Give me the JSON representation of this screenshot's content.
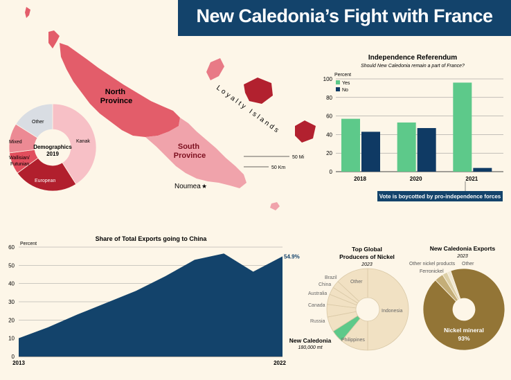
{
  "banner": {
    "title": "New Caledonia’s Fight with France"
  },
  "map": {
    "north_province": [
      "North",
      "Province"
    ],
    "south_province": [
      "South",
      "Province"
    ],
    "loyalty_islands": "Loyalty Islands",
    "capital": "Noumea",
    "scale_mi": "50 Mi",
    "scale_km": "50 Km",
    "colors": {
      "north": "#e35d6a",
      "south": "#f0a3ab",
      "loyalty": "#b2212f",
      "other": "#e87a86"
    }
  },
  "chart_data": [
    {
      "id": "demographics",
      "type": "pie",
      "title": "Demographics",
      "subtitle": "2019",
      "categories": [
        "Kanak",
        "European",
        "Wallisian/ Futunian",
        "Mixed",
        "Other"
      ],
      "values": [
        41,
        24,
        8,
        11,
        16
      ],
      "colors": [
        "#f7c0c6",
        "#b11f2d",
        "#e14e5d",
        "#ec8a94",
        "#d9dde3"
      ]
    },
    {
      "id": "referendum",
      "type": "bar",
      "title": "Independence Referendum",
      "subtitle": "Should New Caledonia remain a part of France?",
      "ylabel": "Percent",
      "categories": [
        "2018",
        "2020",
        "2021"
      ],
      "series": [
        {
          "name": "Yes",
          "values": [
            57,
            53,
            96
          ],
          "color": "#5dc98a"
        },
        {
          "name": "No",
          "values": [
            43,
            47,
            4
          ],
          "color": "#0f3a64"
        }
      ],
      "ylim": [
        0,
        100
      ],
      "yticks": [
        0,
        20,
        40,
        60,
        80,
        100
      ],
      "grid": true,
      "legend": "top-left",
      "annotation": "Vote is boycotted by pro-independence forces"
    },
    {
      "id": "china-exports",
      "type": "area",
      "title": "Share of Total Exports going to China",
      "ylabel": "Percent",
      "x": [
        2013,
        2014,
        2015,
        2016,
        2017,
        2018,
        2019,
        2020,
        2021,
        2022
      ],
      "values": [
        10,
        16,
        23,
        29.5,
        36,
        44,
        53,
        56.5,
        46.5,
        54.9
      ],
      "ylim": [
        0,
        60
      ],
      "yticks": [
        0,
        10,
        20,
        30,
        40,
        50,
        60
      ],
      "xtick_labels": [
        "2013",
        "2022"
      ],
      "end_label": "54.9%",
      "color": "#13436b",
      "grid": true
    },
    {
      "id": "nickel-producers",
      "type": "pie",
      "title": "Top Global Producers of Nickel",
      "subtitle": "2023",
      "categories": [
        "Indonesia",
        "Philippines",
        "New Caledonia",
        "Russia",
        "Canada",
        "Australia",
        "China",
        "Brazil",
        "Other"
      ],
      "values": [
        50,
        11,
        5,
        6,
        5,
        4,
        3,
        3,
        13
      ],
      "colors": [
        "#f1e1c3",
        "#f1e1c3",
        "#5dc98a",
        "#f1e1c3",
        "#f1e1c3",
        "#f1e1c3",
        "#f1e1c3",
        "#f1e1c3",
        "#f1e1c3"
      ],
      "callout": {
        "label": "New Caledonia",
        "value": "180,000 mt"
      }
    },
    {
      "id": "nc-exports",
      "type": "pie",
      "title": "New Caledonia Exports",
      "subtitle": "2023",
      "categories": [
        "Nickel mineral",
        "Ferronickel",
        "Other nickel products",
        "Other"
      ],
      "values": [
        93,
        3.5,
        2,
        1.5
      ],
      "colors": [
        "#937536",
        "#c4ae78",
        "#ddd0a8",
        "#efe7d1"
      ],
      "center_label": {
        "name": "Nickel mineral",
        "value": "93%"
      }
    }
  ]
}
